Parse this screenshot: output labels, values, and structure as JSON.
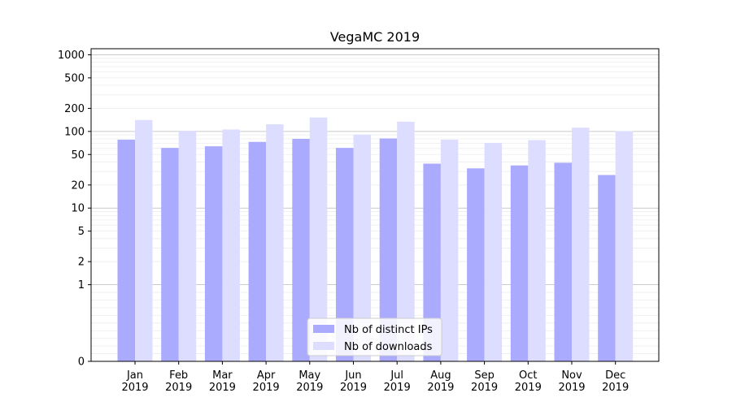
{
  "chart_data": {
    "type": "bar",
    "title": "VegaMC 2019",
    "xlabel": "",
    "ylabel": "",
    "yscale": "symlog",
    "ylim": [
      0,
      1200
    ],
    "yticks": [
      0,
      1,
      2,
      5,
      10,
      20,
      50,
      100,
      200,
      500,
      1000
    ],
    "categories": [
      "Jan\n2019",
      "Feb\n2019",
      "Mar\n2019",
      "Apr\n2019",
      "May\n2019",
      "Jun\n2019",
      "Jul\n2019",
      "Aug\n2019",
      "Sep\n2019",
      "Oct\n2019",
      "Nov\n2019",
      "Dec\n2019"
    ],
    "series": [
      {
        "name": "Nb of distinct IPs",
        "color": "#aaaaff",
        "values": [
          78,
          61,
          64,
          73,
          80,
          61,
          81,
          38,
          33,
          36,
          39,
          27
        ]
      },
      {
        "name": "Nb of downloads",
        "color": "#ddddff",
        "values": [
          141,
          102,
          106,
          124,
          152,
          91,
          134,
          78,
          71,
          77,
          112,
          101
        ]
      }
    ],
    "grid": true,
    "legend": "lower-center"
  }
}
